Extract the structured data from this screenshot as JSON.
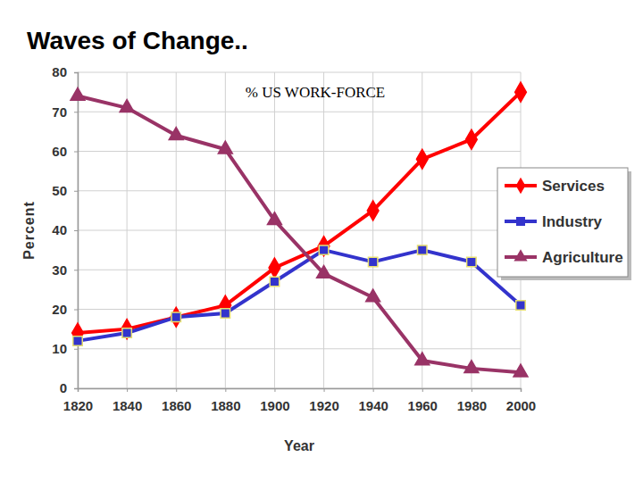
{
  "chart_data": {
    "type": "line",
    "title": "Waves of Change..",
    "subtitle": "% US WORK-FORCE",
    "x_label": "Year",
    "y_label": "Percent",
    "x": [
      1820,
      1840,
      1860,
      1880,
      1900,
      1920,
      1940,
      1960,
      1980,
      2000
    ],
    "xlim": [
      1820,
      2000
    ],
    "xticks": [
      1820,
      1840,
      1860,
      1880,
      1900,
      1920,
      1940,
      1960,
      1980,
      2000
    ],
    "ylim": [
      0,
      80
    ],
    "yticks": [
      0,
      10,
      20,
      30,
      40,
      50,
      60,
      70,
      80
    ],
    "grid": true,
    "legend": "right",
    "series": [
      {
        "name": "Services",
        "color": "#ff0000",
        "marker": "diamond",
        "values": [
          14,
          15,
          18,
          21,
          30.5,
          36,
          45,
          58,
          63,
          75
        ]
      },
      {
        "name": "Industry",
        "color": "#3333cc",
        "marker": "square",
        "values": [
          12,
          14,
          18,
          19,
          27,
          35,
          32,
          35,
          32,
          21
        ]
      },
      {
        "name": "Agriculture",
        "color": "#993366",
        "marker": "triangle",
        "values": [
          74,
          71,
          64,
          60.5,
          42.5,
          29,
          23,
          7,
          5,
          4
        ]
      }
    ]
  }
}
